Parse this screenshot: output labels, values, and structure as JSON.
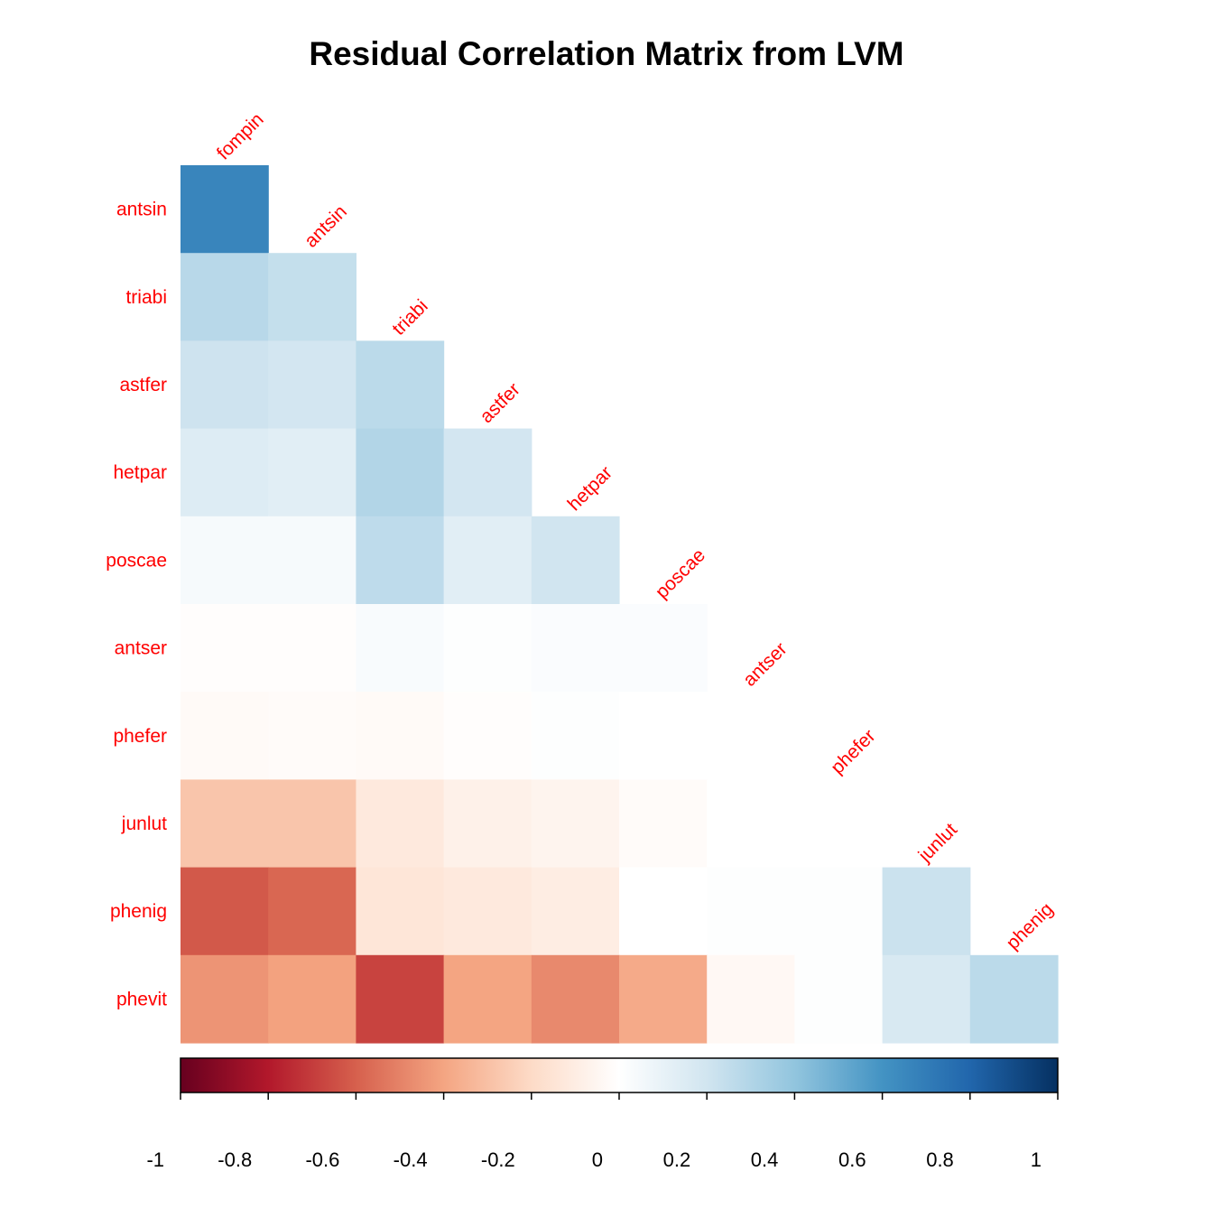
{
  "chart_data": {
    "type": "heatmap",
    "title": "Residual Correlation Matrix from LVM",
    "col_labels": [
      "fompin",
      "antsin",
      "triabi",
      "astfer",
      "hetpar",
      "poscae",
      "antser",
      "phefer",
      "junlut",
      "phenig"
    ],
    "row_labels": [
      "antsin",
      "triabi",
      "astfer",
      "hetpar",
      "poscae",
      "antser",
      "phefer",
      "junlut",
      "phenig",
      "phevit"
    ],
    "lower_triangle": true,
    "values": [
      [
        0.66
      ],
      [
        0.28,
        0.24
      ],
      [
        0.21,
        0.19,
        0.27
      ],
      [
        0.15,
        0.13,
        0.3,
        0.19
      ],
      [
        0.04,
        0.04,
        0.26,
        0.13,
        0.2
      ],
      [
        -0.01,
        -0.01,
        0.03,
        0.01,
        0.02,
        0.02
      ],
      [
        -0.03,
        -0.02,
        -0.03,
        -0.01,
        0.01,
        0.0,
        0.0
      ],
      [
        -0.28,
        -0.28,
        -0.12,
        -0.08,
        -0.06,
        -0.02,
        0.0,
        0.0
      ],
      [
        -0.62,
        -0.58,
        -0.14,
        -0.12,
        -0.1,
        0.0,
        0.01,
        0.01,
        0.22
      ],
      [
        -0.45,
        -0.41,
        -0.68,
        -0.4,
        -0.48,
        -0.38,
        -0.04,
        0.01,
        0.17,
        0.27
      ]
    ],
    "colorbar": {
      "ticks": [
        -1,
        -0.8,
        -0.6,
        -0.4,
        -0.2,
        0,
        0.2,
        0.4,
        0.6,
        0.8,
        1
      ],
      "tick_labels": [
        "-1",
        "-0.8",
        "-0.6",
        "-0.4",
        "-0.2",
        "0",
        "0.2",
        "0.4",
        "0.6",
        "0.8",
        "1"
      ],
      "range": [
        -1,
        1
      ]
    },
    "colors": {
      "scale": [
        "#67001F",
        "#B2182B",
        "#D6604D",
        "#F4A582",
        "#FDDBC7",
        "#FFFFFF",
        "#D1E5F0",
        "#92C5DE",
        "#4393C3",
        "#2166AC",
        "#053061"
      ],
      "label_color": "#FF0000",
      "title_color": "#000000"
    },
    "legend_position": "bottom"
  }
}
